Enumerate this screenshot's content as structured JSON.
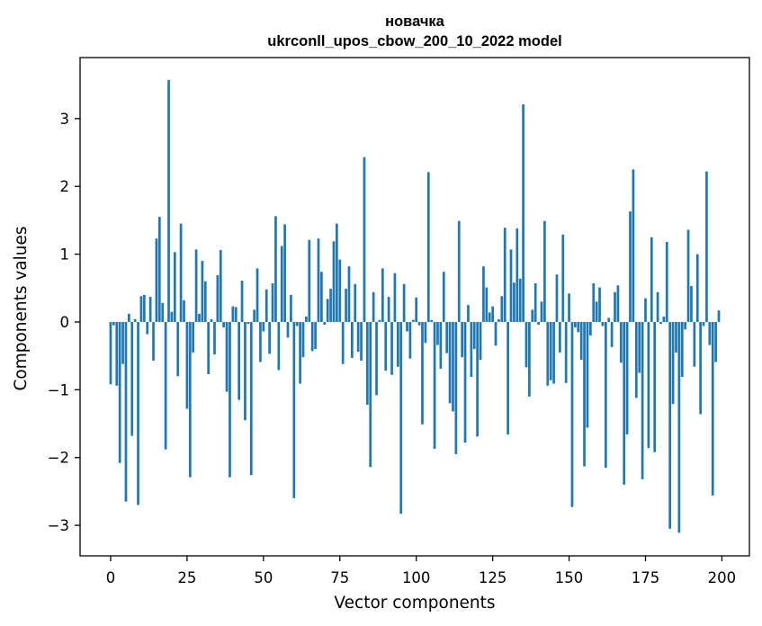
{
  "chart_data": {
    "type": "bar",
    "title_line1": "новачка",
    "title_line2": "ukrconll_upos_cbow_200_10_2022 model",
    "xlabel": "Vector components",
    "ylabel": "Components values",
    "xlim": [
      -10,
      209
    ],
    "ylim": [
      -3.45,
      3.9
    ],
    "xticks": [
      0,
      25,
      50,
      75,
      100,
      125,
      150,
      175,
      200
    ],
    "xtick_labels": [
      "0",
      "25",
      "50",
      "75",
      "100",
      "125",
      "150",
      "175",
      "200"
    ],
    "yticks": [
      -3,
      -2,
      -1,
      0,
      1,
      2,
      3
    ],
    "ytick_labels": [
      "−3",
      "−2",
      "−1",
      "0",
      "1",
      "2",
      "3"
    ],
    "bar_color": "#1f77b4",
    "grid": false,
    "values": [
      -0.92,
      -0.05,
      -0.94,
      -2.08,
      -0.62,
      -2.65,
      0.12,
      -1.68,
      0.04,
      -2.7,
      0.38,
      0.4,
      -0.18,
      0.37,
      -0.57,
      1.23,
      1.55,
      0.28,
      -1.88,
      3.57,
      0.15,
      1.03,
      -0.8,
      1.45,
      0.32,
      -1.28,
      -2.29,
      -0.45,
      1.07,
      0.12,
      0.9,
      0.6,
      -0.77,
      0.04,
      -0.48,
      0.69,
      1.06,
      -0.08,
      -1.03,
      -2.29,
      0.23,
      0.22,
      -1.15,
      0.61,
      -1.45,
      -0.03,
      -2.26,
      0.18,
      0.79,
      -0.59,
      -0.14,
      0.48,
      -0.47,
      0.57,
      1.56,
      -0.71,
      1.12,
      1.44,
      -0.23,
      0.4,
      -2.6,
      -0.06,
      -0.91,
      -0.52,
      0.08,
      1.21,
      -0.43,
      -0.4,
      1.23,
      0.74,
      -0.04,
      0.34,
      0.49,
      1.19,
      1.45,
      0.92,
      -0.62,
      0.49,
      0.82,
      -0.53,
      0.56,
      -0.44,
      -0.57,
      2.43,
      -1.22,
      -2.14,
      0.44,
      -1.08,
      0.03,
      0.79,
      -0.72,
      0.37,
      -0.78,
      0.72,
      -0.66,
      -2.83,
      0.56,
      -0.14,
      -0.54,
      0.03,
      0.36,
      -0.05,
      -1.51,
      -0.31,
      2.21,
      0.03,
      -1.87,
      -0.34,
      -0.69,
      0.74,
      -0.46,
      -1.2,
      -1.32,
      -1.95,
      1.49,
      -0.52,
      -1.78,
      0.25,
      -0.81,
      -0.4,
      -1.69,
      -0.56,
      0.82,
      0.51,
      0.14,
      0.23,
      -0.35,
      0.04,
      0.38,
      1.39,
      -1.66,
      1.07,
      0.58,
      1.38,
      0.64,
      3.21,
      -0.67,
      -1.1,
      0.18,
      0.57,
      -0.04,
      0.3,
      1.49,
      -0.94,
      -0.86,
      -0.91,
      0.7,
      -0.45,
      1.29,
      -0.9,
      0.42,
      -2.73,
      -0.08,
      -0.15,
      -0.56,
      -2.13,
      -1.56,
      -0.2,
      0.57,
      0.3,
      0.51,
      -0.06,
      -2.15,
      0.06,
      -0.37,
      0.44,
      0.54,
      -0.6,
      -2.4,
      -1.66,
      1.63,
      2.25,
      -1.12,
      -0.75,
      -2.32,
      0.35,
      -1.86,
      1.25,
      -1.92,
      0.44,
      -0.03,
      0.08,
      1.18,
      -3.05,
      -1.21,
      -0.45,
      -3.11,
      -0.81,
      -0.11,
      1.36,
      0.53,
      -0.66,
      1.0,
      -1.36,
      -0.06,
      2.22,
      -0.34,
      -2.56,
      -0.59,
      0.17
    ]
  }
}
